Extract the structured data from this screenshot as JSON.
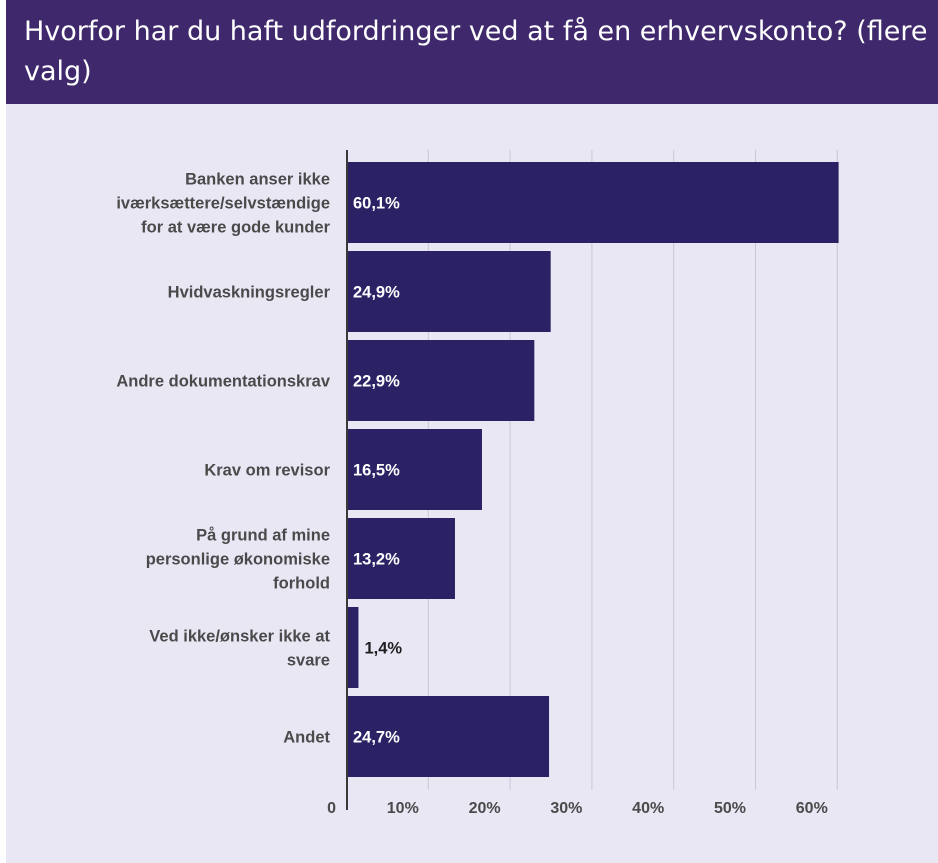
{
  "header": {
    "title": "Hvorfor har du haft udfordringer ved at få en erhvervskonto? (flere valg)"
  },
  "colors": {
    "header_bg": "#3f296c",
    "panel_bg": "#eae7f5",
    "bar": "#2a2265",
    "grid": "#c9c6d6"
  },
  "chart_data": {
    "type": "bar",
    "orientation": "horizontal",
    "categories": [
      [
        "Banken anser ikke",
        "iværksættere/selvstændige",
        "for at være gode kunder"
      ],
      [
        "Hvidvaskningsregler"
      ],
      [
        "Andre dokumentationskrav"
      ],
      [
        "Krav om revisor"
      ],
      [
        "På grund af mine",
        "personlige økonomiske",
        "forhold"
      ],
      [
        "Ved ikke/ønsker ikke at",
        "svare"
      ],
      [
        "Andet"
      ]
    ],
    "values": [
      60.1,
      24.9,
      22.9,
      16.5,
      13.2,
      1.4,
      24.7
    ],
    "value_labels": [
      "60,1%",
      "24,9%",
      "22,9%",
      "16,5%",
      "13,2%",
      "1,4%",
      "24,7%"
    ],
    "xlim": [
      0,
      60
    ],
    "ticks": [
      0,
      10,
      20,
      30,
      40,
      50,
      60
    ],
    "tick_labels": [
      "0",
      "10%",
      "20%",
      "30%",
      "40%",
      "50%",
      "60%"
    ],
    "grid": true
  }
}
